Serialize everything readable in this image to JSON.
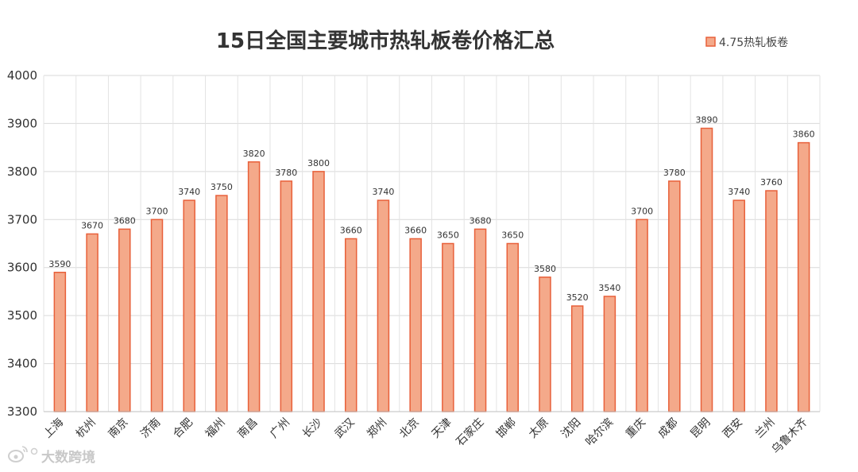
{
  "chart_data": {
    "type": "bar",
    "title": "15日全国主要城市热轧板卷价格汇总",
    "legend": {
      "entries": [
        "4.75热轧板卷"
      ],
      "position": "top-right"
    },
    "series": [
      {
        "name": "4.75热轧板卷",
        "color": "#f4a98a",
        "stroke": "#e8603a",
        "values": [
          3590,
          3670,
          3680,
          3700,
          3740,
          3750,
          3820,
          3780,
          3800,
          3660,
          3740,
          3660,
          3650,
          3680,
          3650,
          3580,
          3520,
          3540,
          3700,
          3780,
          3890,
          3740,
          3760,
          3860
        ]
      }
    ],
    "categories": [
      "上海",
      "杭州",
      "南京",
      "济南",
      "合肥",
      "福州",
      "南昌",
      "广州",
      "长沙",
      "武汉",
      "郑州",
      "北京",
      "天津",
      "石家庄",
      "邯郸",
      "太原",
      "沈阳",
      "哈尔滨",
      "重庆",
      "成都",
      "昆明",
      "西安",
      "兰州",
      "乌鲁木齐"
    ],
    "ylim": [
      3300,
      4000
    ],
    "yticks": [
      3300,
      3400,
      3500,
      3600,
      3700,
      3800,
      3900,
      4000
    ],
    "grid": true,
    "data_labels": true
  },
  "watermark": {
    "text": "大数跨境",
    "logo": "weibo-logo-icon"
  }
}
